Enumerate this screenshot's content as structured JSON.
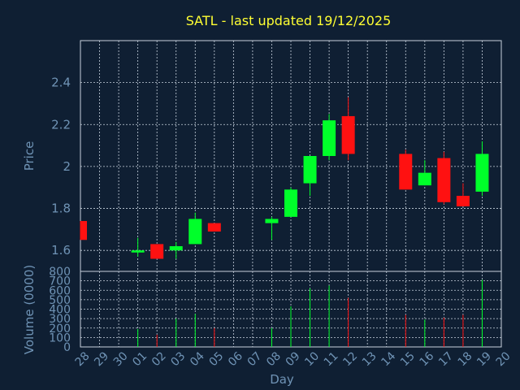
{
  "chart_data": [
    {
      "type": "candlestick",
      "title": "SATL - last updated 19/12/2025",
      "xlabel": "Day",
      "ylabel": "Price",
      "ylim": [
        1.5,
        2.6
      ],
      "yticks": [
        1.6,
        1.8,
        2,
        2.2,
        2.4
      ],
      "ytick_labels": [
        "1.6",
        "1.8",
        "2",
        "2.2",
        "2.4"
      ],
      "grid": true,
      "up_color": "#00ff2a",
      "down_color": "#ff1111",
      "categories": [
        "28",
        "29",
        "30",
        "01",
        "02",
        "03",
        "04",
        "05",
        "06",
        "07",
        "08",
        "09",
        "10",
        "11",
        "12",
        "13",
        "14",
        "15",
        "16",
        "17",
        "18",
        "19",
        "20"
      ],
      "candles": [
        {
          "day": "28",
          "open": 1.74,
          "high": 1.74,
          "low": 1.65,
          "close": 1.65
        },
        {
          "day": "01",
          "open": 1.59,
          "high": 1.66,
          "low": 1.57,
          "close": 1.6
        },
        {
          "day": "02",
          "open": 1.63,
          "high": 1.63,
          "low": 1.56,
          "close": 1.56
        },
        {
          "day": "03",
          "open": 1.6,
          "high": 1.64,
          "low": 1.56,
          "close": 1.62
        },
        {
          "day": "04",
          "open": 1.63,
          "high": 1.78,
          "low": 1.63,
          "close": 1.75
        },
        {
          "day": "05",
          "open": 1.73,
          "high": 1.73,
          "low": 1.69,
          "close": 1.69
        },
        {
          "day": "08",
          "open": 1.73,
          "high": 1.76,
          "low": 1.65,
          "close": 1.75
        },
        {
          "day": "09",
          "open": 1.76,
          "high": 1.9,
          "low": 1.76,
          "close": 1.89
        },
        {
          "day": "10",
          "open": 1.92,
          "high": 2.05,
          "low": 1.86,
          "close": 2.05
        },
        {
          "day": "11",
          "open": 2.05,
          "high": 2.25,
          "low": 2.03,
          "close": 2.22
        },
        {
          "day": "12",
          "open": 2.24,
          "high": 2.33,
          "low": 2.03,
          "close": 2.06
        },
        {
          "day": "15",
          "open": 2.06,
          "high": 2.08,
          "low": 1.89,
          "close": 1.89
        },
        {
          "day": "16",
          "open": 1.91,
          "high": 2.03,
          "low": 1.91,
          "close": 1.97
        },
        {
          "day": "17",
          "open": 2.04,
          "high": 2.07,
          "low": 1.82,
          "close": 1.83
        },
        {
          "day": "18",
          "open": 1.86,
          "high": 1.92,
          "low": 1.81,
          "close": 1.81
        },
        {
          "day": "19",
          "open": 1.88,
          "high": 2.12,
          "low": 1.86,
          "close": 2.06
        }
      ]
    },
    {
      "type": "bar",
      "ylabel": "Volume (0000)",
      "ylim": [
        0,
        800
      ],
      "yticks": [
        0,
        100,
        200,
        300,
        400,
        500,
        600,
        700,
        800
      ],
      "ytick_labels": [
        "0",
        "100",
        "200",
        "300",
        "400",
        "500",
        "600",
        "700",
        "800"
      ],
      "grid": true,
      "volumes": [
        {
          "day": "01",
          "value": 190,
          "direction": "up"
        },
        {
          "day": "02",
          "value": 130,
          "direction": "down"
        },
        {
          "day": "03",
          "value": 300,
          "direction": "up"
        },
        {
          "day": "04",
          "value": 350,
          "direction": "up"
        },
        {
          "day": "05",
          "value": 200,
          "direction": "down"
        },
        {
          "day": "08",
          "value": 200,
          "direction": "up"
        },
        {
          "day": "09",
          "value": 430,
          "direction": "up"
        },
        {
          "day": "10",
          "value": 620,
          "direction": "up"
        },
        {
          "day": "11",
          "value": 650,
          "direction": "up"
        },
        {
          "day": "12",
          "value": 520,
          "direction": "down"
        },
        {
          "day": "15",
          "value": 340,
          "direction": "down"
        },
        {
          "day": "16",
          "value": 290,
          "direction": "up"
        },
        {
          "day": "17",
          "value": 310,
          "direction": "down"
        },
        {
          "day": "18",
          "value": 340,
          "direction": "down"
        },
        {
          "day": "19",
          "value": 710,
          "direction": "up"
        }
      ]
    }
  ]
}
